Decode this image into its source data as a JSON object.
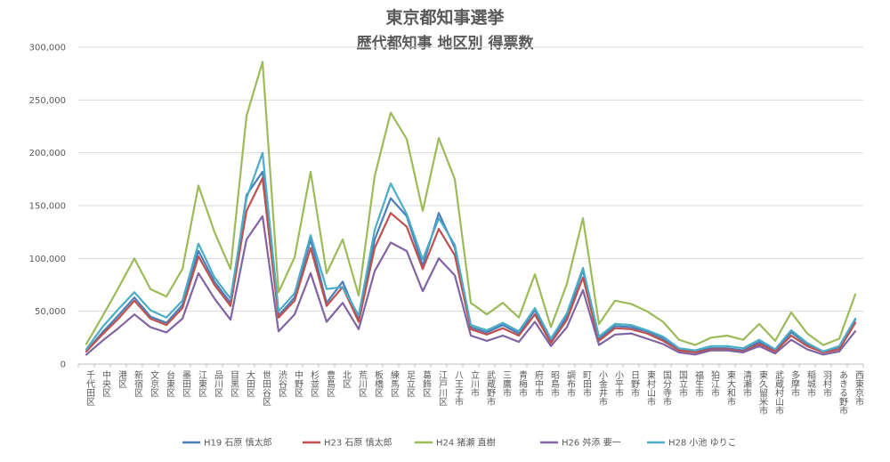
{
  "chart_data": {
    "type": "line",
    "title": "東京都知事選挙",
    "subtitle": "歴代都知事 地区別 得票数",
    "ylim": [
      0,
      300000
    ],
    "yticks": [
      0,
      50000,
      100000,
      150000,
      200000,
      250000,
      300000
    ],
    "ytick_labels": [
      "0",
      "50,000",
      "100,000",
      "150,000",
      "200,000",
      "250,000",
      "300,000"
    ],
    "grid": true,
    "legend_position": "bottom",
    "categories": [
      "千代田区",
      "中央区",
      "港区",
      "新宿区",
      "文京区",
      "台東区",
      "墨田区",
      "江東区",
      "品川区",
      "目黒区",
      "大田区",
      "世田谷区",
      "渋谷区",
      "中野区",
      "杉並区",
      "豊島区",
      "北区",
      "荒川区",
      "板橋区",
      "練馬区",
      "足立区",
      "葛飾区",
      "江戸川区",
      "八王子市",
      "立川市",
      "武蔵野市",
      "三鷹市",
      "青梅市",
      "府中市",
      "昭島市",
      "調布市",
      "町田市",
      "小金井市",
      "小平市",
      "日野市",
      "東村山市",
      "国分寺市",
      "国立市",
      "福生市",
      "狛江市",
      "東大和市",
      "清瀬市",
      "東久留米市",
      "武蔵村山市",
      "多摩市",
      "稲城市",
      "羽村市",
      "あきる野市",
      "西東京市"
    ],
    "series": [
      {
        "name": "H19 石原 慎太郎",
        "color": "#4a7ebb",
        "values": [
          12000,
          30000,
          46000,
          63000,
          45000,
          39000,
          56000,
          107000,
          78000,
          58000,
          160000,
          182000,
          46000,
          63000,
          118000,
          58000,
          78000,
          42000,
          118000,
          157000,
          140000,
          93000,
          143000,
          110000,
          35000,
          30000,
          37000,
          29000,
          51000,
          22000,
          45000,
          89000,
          24000,
          36000,
          35000,
          31000,
          24000,
          14000,
          12000,
          15000,
          15000,
          13000,
          21000,
          13000,
          30000,
          19000,
          12000,
          16000,
          42000
        ]
      },
      {
        "name": "H23 石原 慎太郎",
        "color": "#c0504d",
        "values": [
          12000,
          28000,
          43000,
          60000,
          43000,
          37000,
          53000,
          102000,
          75000,
          55000,
          145000,
          176000,
          44000,
          60000,
          110000,
          55000,
          73000,
          40000,
          110000,
          143000,
          130000,
          90000,
          128000,
          103000,
          33000,
          28000,
          34000,
          27000,
          47000,
          20000,
          42000,
          82000,
          22000,
          34000,
          33000,
          29000,
          22000,
          13000,
          11000,
          14000,
          14000,
          12000,
          19000,
          12000,
          27000,
          17000,
          11000,
          14000,
          39000
        ]
      },
      {
        "name": "H24 猪瀬 直樹",
        "color": "#9bbb59",
        "values": [
          19000,
          45000,
          72000,
          100000,
          71000,
          64000,
          90000,
          169000,
          125000,
          90000,
          235000,
          286000,
          68000,
          101000,
          182000,
          86000,
          118000,
          65000,
          178000,
          238000,
          213000,
          145000,
          214000,
          175000,
          58000,
          47000,
          58000,
          44000,
          85000,
          35000,
          76000,
          138000,
          38000,
          60000,
          57000,
          50000,
          40000,
          23000,
          18000,
          25000,
          27000,
          23000,
          38000,
          22000,
          49000,
          29000,
          18000,
          24000,
          66000
        ]
      },
      {
        "name": "H26 舛添 要一",
        "color": "#8064a2",
        "values": [
          9000,
          22000,
          34000,
          47000,
          35000,
          30000,
          43000,
          86000,
          62000,
          42000,
          118000,
          140000,
          31000,
          47000,
          86000,
          40000,
          58000,
          33000,
          88000,
          115000,
          107000,
          69000,
          100000,
          84000,
          27000,
          22000,
          27000,
          21000,
          40000,
          17000,
          35000,
          70000,
          18000,
          28000,
          29000,
          24000,
          19000,
          11000,
          9000,
          13000,
          13000,
          11000,
          17000,
          10000,
          23000,
          14000,
          9000,
          12000,
          31000
        ]
      },
      {
        "name": "H28 小池 ゆりこ",
        "color": "#4bacc6",
        "values": [
          14000,
          35000,
          52000,
          68000,
          51000,
          44000,
          60000,
          114000,
          82000,
          62000,
          157000,
          200000,
          50000,
          67000,
          122000,
          71000,
          73000,
          46000,
          127000,
          171000,
          142000,
          99000,
          138000,
          113000,
          37000,
          32000,
          39000,
          31000,
          53000,
          24000,
          48000,
          91000,
          26000,
          38000,
          37000,
          32000,
          26000,
          15000,
          13000,
          17000,
          17000,
          15000,
          23000,
          14000,
          32000,
          20000,
          12000,
          17000,
          43000
        ]
      }
    ]
  }
}
